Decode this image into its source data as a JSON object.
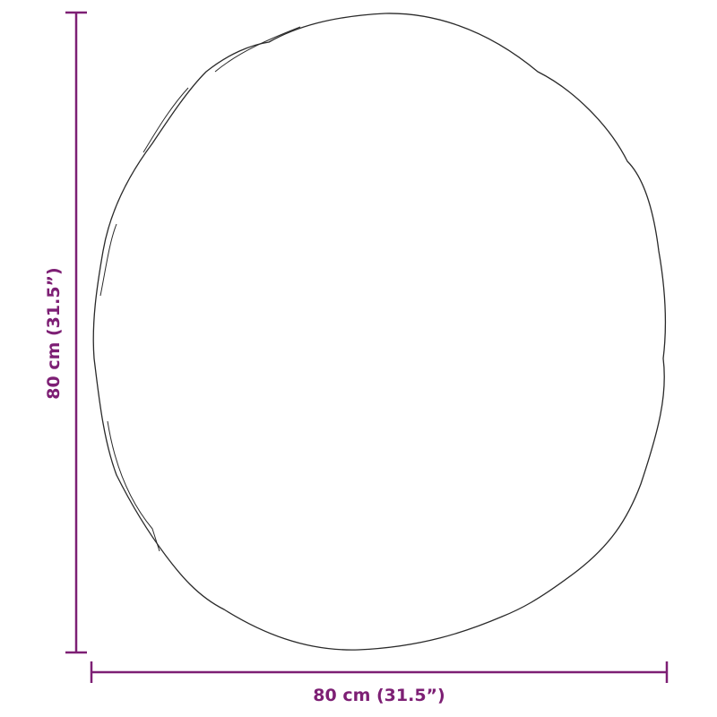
{
  "colors": {
    "dimension": "#7d1f74",
    "outline": "#2a2a2a"
  },
  "dimensions": {
    "width_label": "80 cm (31.5”)",
    "height_label": "80 cm (31.5”)"
  },
  "shape": "irregular-round-mirror"
}
